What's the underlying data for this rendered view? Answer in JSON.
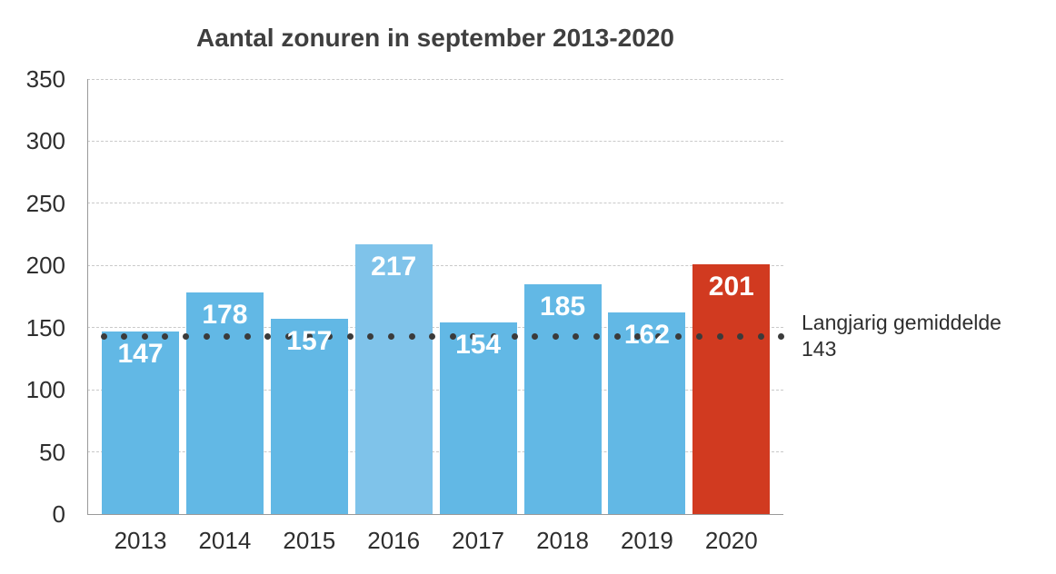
{
  "chart_data": {
    "type": "bar",
    "title": "Aantal zonuren in september 2013-2020",
    "categories": [
      "2013",
      "2014",
      "2015",
      "2016",
      "2017",
      "2018",
      "2019",
      "2020"
    ],
    "values": [
      147,
      178,
      157,
      217,
      154,
      185,
      162,
      201
    ],
    "bar_colors": [
      "#62b8e5",
      "#62b8e5",
      "#62b8e5",
      "#7fc3ea",
      "#62b8e5",
      "#62b8e5",
      "#62b8e5",
      "#d13a20"
    ],
    "xlabel": "",
    "ylabel": "",
    "ylim": [
      0,
      350
    ],
    "yticks": [
      0,
      50,
      100,
      150,
      200,
      250,
      300,
      350
    ],
    "grid": "horizontal-dashed",
    "legend": "none",
    "average_line": {
      "value": 143,
      "style": "dotted",
      "label_line1": "Langjarig gemiddelde",
      "label_line2": "143"
    },
    "colors": {
      "bar_default": "#62b8e5",
      "bar_2016": "#7fc3ea",
      "bar_2020_highlight": "#d13a20",
      "value_label": "#ffffff",
      "average_dots": "#3b3b3b",
      "grid": "#c9c9c9",
      "axis": "#9a9a9a",
      "tick_text": "#2e2e2e",
      "title_text": "#3f3f3f",
      "background": "#ffffff"
    }
  }
}
